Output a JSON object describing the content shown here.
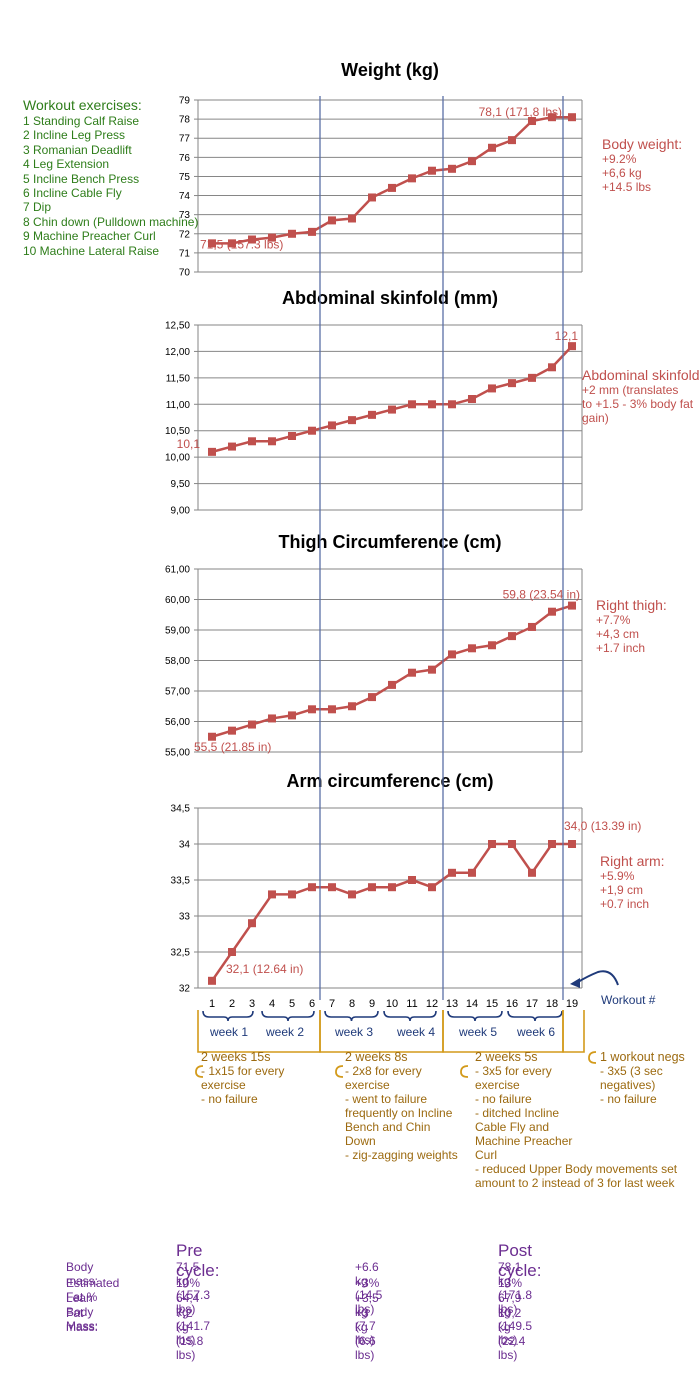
{
  "exercises": {
    "title": "Workout exercises:",
    "items": [
      "1 Standing Calf Raise",
      "2 Incline Leg Press",
      "3 Romanian Deadlift",
      "4 Leg Extension",
      "5 Incline Bench Press",
      "6 Incline Cable Fly",
      "7 Dip",
      "8 Chin down (Pulldown machine)",
      "9 Machine Preacher Curl",
      "10 Machine Lateral Raise"
    ]
  },
  "notes": {
    "weight": {
      "title": "Body weight:",
      "lines": [
        "+9.2%",
        "+6,6 kg",
        "+14.5 lbs"
      ]
    },
    "skinfold": {
      "title": "Abdominal skinfold:",
      "lines": [
        "+2 mm (translates",
        "to +1.5 - 3% body fat",
        "gain)"
      ]
    },
    "thigh": {
      "title": "Right thigh:",
      "lines": [
        "+7.7%",
        "+4,3 cm",
        "+1.7 inch"
      ]
    },
    "arm": {
      "title": "Right arm:",
      "lines": [
        "+5.9%",
        "+1,9 cm",
        "+0.7 inch"
      ]
    }
  },
  "workout_axis_label": "Workout #",
  "weeks": [
    "week 1",
    "week 2",
    "week 3",
    "week 4",
    "week 5",
    "week 6"
  ],
  "phases": [
    {
      "title": "2 weeks 15s",
      "lines": [
        "- 1x15 for every",
        "exercise",
        "- no failure"
      ]
    },
    {
      "title": "2 weeks 8s",
      "lines": [
        "- 2x8 for every",
        "exercise",
        "- went to failure",
        "frequently on Incline",
        "Bench and Chin",
        "Down",
        "- zig-zagging weights"
      ]
    },
    {
      "title": "2 weeks 5s",
      "lines": [
        "- 3x5 for every",
        "exercise",
        "- no failure",
        "- ditched Incline",
        "Cable Fly and",
        "Machine Preacher",
        "Curl",
        "- reduced Upper Body movements set",
        "amount to 2 instead of 3 for last week"
      ]
    },
    {
      "title": "1 workout negs",
      "lines": [
        "- 3x5 (3 sec",
        "negatives)",
        "- no failure"
      ]
    }
  ],
  "summary": {
    "pre_title": "Pre cycle:",
    "post_title": "Post cycle:",
    "labels": [
      "Body mass:",
      "Estimated Fat %",
      "Lean Body Mass:",
      "Fat mass:"
    ],
    "pre": [
      "71,5 kg (157.3 lbs)",
      "10%",
      "64,4 kg (141.7 lbs)",
      "7,2 kg (15.8 lbs)"
    ],
    "delta": [
      "+6.6 kg (14.5 lbs)",
      "+3%",
      "+3,5 kg (7.7 lbs)",
      "+3 kg (6.6 lbs)"
    ],
    "post": [
      "78,1 kg (171.8 lbs)",
      "13%",
      "67,9 kg (149.5 lbs)",
      "10,2 kg (22.4 lbs)"
    ]
  },
  "chart_data": [
    {
      "type": "line",
      "title": "Weight (kg)",
      "x": [
        1,
        2,
        3,
        4,
        5,
        6,
        7,
        8,
        9,
        10,
        11,
        12,
        13,
        14,
        15,
        16,
        17,
        18,
        19
      ],
      "values": [
        71.5,
        71.5,
        71.7,
        71.8,
        72.0,
        72.1,
        72.7,
        72.8,
        73.9,
        74.4,
        74.9,
        75.3,
        75.4,
        75.8,
        76.5,
        76.9,
        77.9,
        78.1,
        78.1
      ],
      "ylim": [
        70,
        79
      ],
      "yticks": [
        "70",
        "71",
        "72",
        "73",
        "74",
        "75",
        "76",
        "77",
        "78",
        "79"
      ],
      "annotations": [
        "71,5 (157.3 lbs)",
        "78,1 (171,8 lbs)"
      ]
    },
    {
      "type": "line",
      "title": "Abdominal skinfold (mm)",
      "x": [
        1,
        2,
        3,
        4,
        5,
        6,
        7,
        8,
        9,
        10,
        11,
        12,
        13,
        14,
        15,
        16,
        17,
        18,
        19
      ],
      "values": [
        10.1,
        10.2,
        10.3,
        10.3,
        10.4,
        10.5,
        10.6,
        10.7,
        10.8,
        10.9,
        11.0,
        11.0,
        11.0,
        11.1,
        11.3,
        11.4,
        11.5,
        11.7,
        12.1
      ],
      "ylim": [
        9,
        12.5
      ],
      "yticks": [
        "9,00",
        "9,50",
        "10,00",
        "10,50",
        "11,00",
        "11,50",
        "12,00",
        "12,50"
      ],
      "annotations": [
        "10,1",
        "12,1"
      ]
    },
    {
      "type": "line",
      "title": "Thigh Circumference (cm)",
      "x": [
        1,
        2,
        3,
        4,
        5,
        6,
        7,
        8,
        9,
        10,
        11,
        12,
        13,
        14,
        15,
        16,
        17,
        18,
        19
      ],
      "values": [
        55.5,
        55.7,
        55.9,
        56.1,
        56.2,
        56.4,
        56.4,
        56.5,
        56.8,
        57.2,
        57.6,
        57.7,
        58.2,
        58.4,
        58.5,
        58.8,
        59.1,
        59.6,
        59.8
      ],
      "ylim": [
        55,
        61
      ],
      "yticks": [
        "55,00",
        "56,00",
        "57,00",
        "58,00",
        "59,00",
        "60,00",
        "61,00"
      ],
      "annotations": [
        "55,5 (21.85 in)",
        "59,8 (23.54 in)"
      ]
    },
    {
      "type": "line",
      "title": "Arm circumference (cm)",
      "x": [
        1,
        2,
        3,
        4,
        5,
        6,
        7,
        8,
        9,
        10,
        11,
        12,
        13,
        14,
        15,
        16,
        17,
        18,
        19
      ],
      "values": [
        32.1,
        32.5,
        32.9,
        33.3,
        33.3,
        33.4,
        33.4,
        33.3,
        33.4,
        33.4,
        33.5,
        33.4,
        33.6,
        33.6,
        34.0,
        34.0,
        33.6,
        34.0,
        34.0
      ],
      "ylim": [
        32,
        34.5
      ],
      "yticks": [
        "32",
        "32,5",
        "33",
        "33,5",
        "34",
        "34,5"
      ],
      "xticks": [
        "1",
        "2",
        "3",
        "4",
        "5",
        "6",
        "7",
        "8",
        "9",
        "10",
        "11",
        "12",
        "13",
        "14",
        "15",
        "16",
        "17",
        "18",
        "19"
      ],
      "annotations": [
        "32,1 (12.64 in)",
        "34,0 (13.39 in)"
      ]
    }
  ]
}
